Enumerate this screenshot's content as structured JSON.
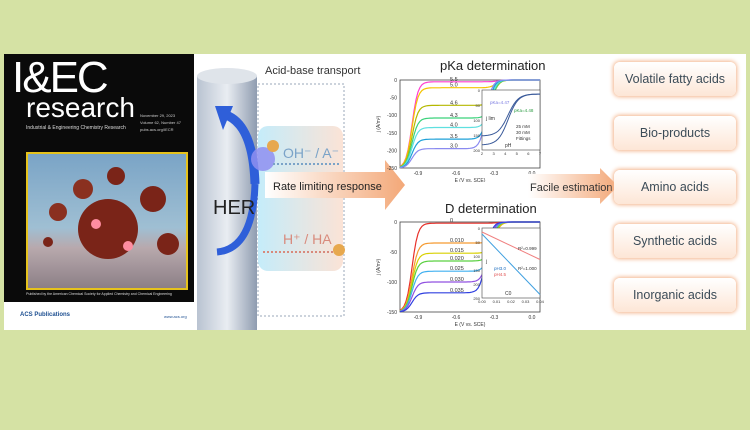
{
  "cover": {
    "title": "I&EC",
    "subtitle": "research",
    "journal": "Industrial & Engineering Chemistry Research",
    "date": "November 29, 2023",
    "volume": "Volume 62, Number 47",
    "url": "pubs.acs.org/IECR",
    "published_by": "Published by the American Chemical Society for Applied Chemistry and Chemical Engineering",
    "publisher": "ACS Publications",
    "site": "www.acs.org"
  },
  "mechanism": {
    "title": "Acid-base transport",
    "electrode_label": "HER",
    "species_out": "OH⁻ / A⁻",
    "species_in": "H⁺ / HA",
    "arrow_label": "Rate limiting response"
  },
  "pka_plot": {
    "title": "pKa determination",
    "ylabel": "j (A/m²)",
    "xlabel": "E (V vs. SCE)",
    "yticks": [
      "0",
      "-50",
      "-100",
      "-150",
      "-200",
      "-250"
    ],
    "xticks": [
      "-0.9",
      "-0.6",
      "-0.3",
      "0.0"
    ],
    "curve_labels": [
      "5.5",
      "5.0",
      "4.6",
      "4.3",
      "4.0",
      "3.5",
      "3.0"
    ],
    "curve_colors": [
      "#ff3fd0",
      "#f5c400",
      "#b5b800",
      "#3ad27a",
      "#5fe0e0",
      "#1da0d8",
      "#8a8af0"
    ],
    "plateaus": [
      -5,
      -22,
      -72,
      -108,
      -135,
      -168,
      -195
    ],
    "inset": {
      "ylabel": "j lim",
      "xlabel": "pH",
      "xticks": [
        "2",
        "3",
        "4",
        "5",
        "6",
        "7"
      ],
      "yticks": [
        "0",
        "50",
        "100",
        "150",
        "200"
      ],
      "annot1": "pKa=4.47",
      "annot2": "pKa=4.48",
      "legend": [
        "25 mM",
        "30 mM",
        "Fittings"
      ]
    }
  },
  "d_plot": {
    "title": "D determination",
    "ylabel": "j (A/m²)",
    "xlabel": "E (V vs. SCE)",
    "yticks": [
      "0",
      "-50",
      "-100",
      "-150"
    ],
    "xticks": [
      "-0.9",
      "-0.6",
      "-0.3",
      "0.0"
    ],
    "curve_labels": [
      "0",
      "0.010",
      "0.015",
      "0.020",
      "0.025",
      "0.030",
      "0.035"
    ],
    "curve_colors": [
      "#e8302a",
      "#f59a30",
      "#d8d000",
      "#5ad040",
      "#40b0f0",
      "#9050e0",
      "#3040e0"
    ],
    "plateaus": [
      -2,
      -35,
      -52,
      -65,
      -82,
      -100,
      -118
    ],
    "inset": {
      "ylabel": "j",
      "xlabel": "C0",
      "xticks": [
        "0.00",
        "0.01",
        "0.02",
        "0.03",
        "0.04"
      ],
      "yticks": [
        "0",
        "50",
        "100",
        "150",
        "200",
        "250"
      ],
      "r1": "R²=0.999",
      "r2": "R²=1.000",
      "legend": [
        "pH3.0",
        "pH4.5"
      ]
    }
  },
  "transition_label": "Facile estimation",
  "applications": [
    "Volatile fatty acids",
    "Bio-products",
    "Amino acids",
    "Synthetic acids",
    "Inorganic acids"
  ]
}
